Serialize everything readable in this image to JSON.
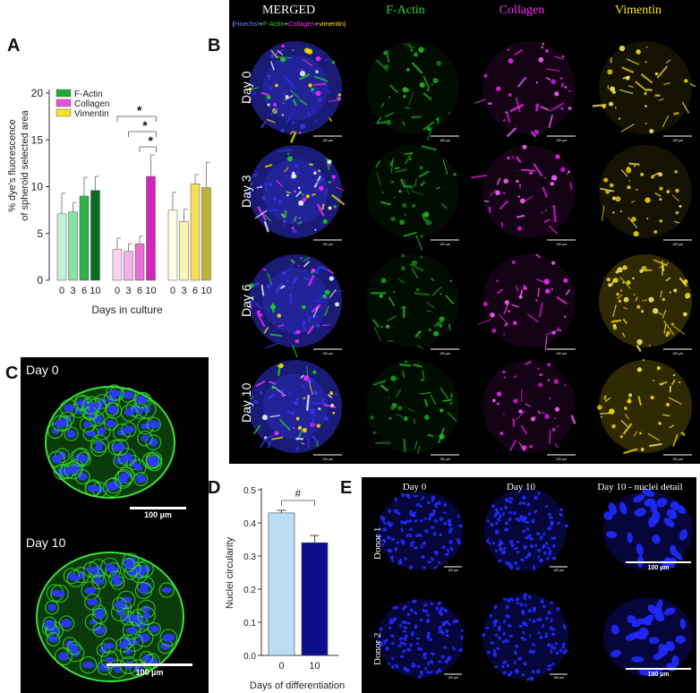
{
  "panels": {
    "a": "A",
    "b": "B",
    "c": "C",
    "d": "D",
    "e": "E"
  },
  "chart_data": [
    {
      "type": "bar",
      "panel": "A",
      "ylabel": "% dye's fluorescence of spheroid selected area",
      "ylabel_line1": "% dye's fluorescence",
      "ylabel_line2": "of spheroid selected area",
      "xlabel": "Days in culture",
      "ylim": [
        0,
        20
      ],
      "yticks": [
        "0",
        "5",
        "10",
        "15",
        "20"
      ],
      "categories": [
        "0",
        "3",
        "6",
        "10"
      ],
      "series": [
        {
          "name": "F-Actin",
          "values": [
            7.1,
            7.3,
            9.0,
            9.6
          ],
          "errors": [
            2.2,
            1.0,
            2.0,
            1.5
          ],
          "colors": [
            "#c4f2d6",
            "#86e3a4",
            "#2fb24c",
            "#0b6a23"
          ],
          "legend_color": "#1ea832"
        },
        {
          "name": "Collagen",
          "values": [
            3.3,
            3.1,
            3.9,
            11.1
          ],
          "errors": [
            1.2,
            0.8,
            0.8,
            2.3
          ],
          "colors": [
            "#fbd4f2",
            "#f5aee6",
            "#e86ed4",
            "#d424bc"
          ],
          "legend_color": "#e455cc"
        },
        {
          "name": "Vimentin",
          "values": [
            7.5,
            6.3,
            10.3,
            9.9
          ],
          "errors": [
            1.9,
            1.3,
            1.0,
            2.7
          ],
          "colors": [
            "#fffde6",
            "#fbf3b4",
            "#f2df56",
            "#bfb339"
          ],
          "legend_color": "#f6e41a"
        }
      ],
      "significance": [
        "*",
        "*",
        "*"
      ]
    },
    {
      "type": "bar",
      "panel": "D",
      "ylabel": "Nuclei circularity",
      "xlabel": "Days of differentiation",
      "ylim": [
        0,
        0.5
      ],
      "yticks": [
        "0.0",
        "0.1",
        "0.2",
        "0.3",
        "0.4",
        "0.5"
      ],
      "categories": [
        "0",
        "10"
      ],
      "values": [
        0.43,
        0.34
      ],
      "errors": [
        0.008,
        0.022
      ],
      "colors": [
        "#bcdcf4",
        "#0d0e8d"
      ],
      "significance": "#"
    }
  ],
  "panel_b": {
    "columns": [
      "MERGED",
      "F-Actin",
      "Collagen",
      "Vimentin"
    ],
    "subtitle": {
      "open": "(",
      "hoechst": "Hoechst",
      "p1": "+",
      "factin": "F-Actin",
      "p2": "+",
      "collagen": "Collagen",
      "p3": "+",
      "vimentin": "vimentin",
      "close": ")"
    },
    "rows": [
      "Day 0",
      "Day 3",
      "Day 6",
      "Day 10"
    ],
    "scalebar": "100 µm",
    "column_colors": [
      "#ffffff",
      "#2bd52b",
      "#ff2aff",
      "#ffea00"
    ]
  },
  "panel_c": {
    "labels": [
      "Day 0",
      "Day 10"
    ],
    "scalebar": "100 µm"
  },
  "panel_e": {
    "columns": [
      "Day 0",
      "Day 10",
      "Day 10 - nuclei detail"
    ],
    "rows": [
      "Donor 1",
      "Donor 2"
    ],
    "scalebar": "100 µm"
  }
}
